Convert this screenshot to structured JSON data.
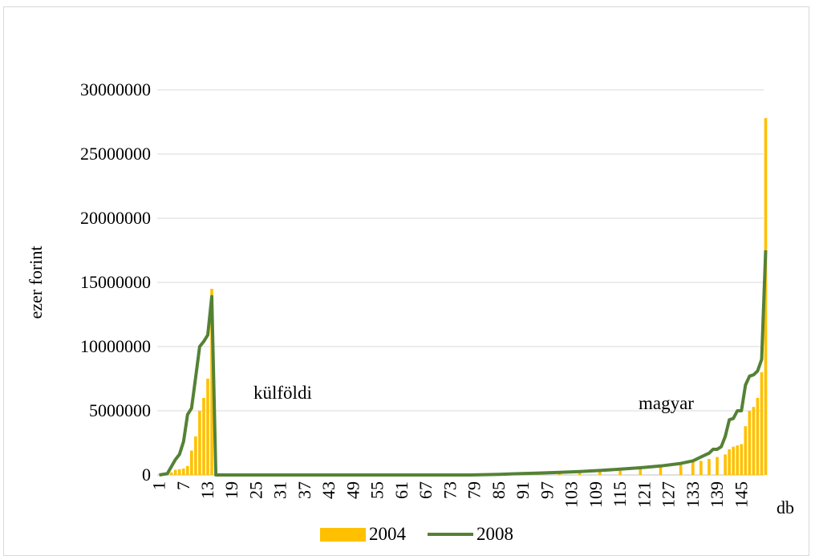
{
  "chart_data": {
    "type": "bar",
    "title": "",
    "xlabel": "db",
    "ylabel": "ezer forint",
    "ylim": [
      0,
      30000000
    ],
    "yticks": [
      "0",
      "5000000",
      "10000000",
      "15000000",
      "20000000",
      "25000000",
      "30000000"
    ],
    "xticks": [
      "1",
      "7",
      "13",
      "19",
      "25",
      "31",
      "37",
      "43",
      "49",
      "55",
      "61",
      "67",
      "73",
      "79",
      "85",
      "91",
      "97",
      "103",
      "109",
      "115",
      "121",
      "127",
      "133",
      "139",
      "145"
    ],
    "x_count": 150,
    "grid": true,
    "legend_position": "bottom",
    "annotations": [
      {
        "text": "külföldi",
        "x": 33
      },
      {
        "text": "magyar",
        "x": 133
      }
    ],
    "series": [
      {
        "name": "2004",
        "type": "bar",
        "color": "#ffc000",
        "points": [
          [
            1,
            0
          ],
          [
            2,
            0
          ],
          [
            3,
            50000
          ],
          [
            4,
            200000
          ],
          [
            5,
            400000
          ],
          [
            6,
            450000
          ],
          [
            7,
            500000
          ],
          [
            8,
            700000
          ],
          [
            9,
            1900000
          ],
          [
            10,
            3000000
          ],
          [
            11,
            5000000
          ],
          [
            12,
            6000000
          ],
          [
            13,
            7500000
          ],
          [
            14,
            14500000
          ],
          [
            15,
            0
          ],
          [
            79,
            40000
          ],
          [
            85,
            60000
          ],
          [
            90,
            90000
          ],
          [
            95,
            130000
          ],
          [
            100,
            170000
          ],
          [
            105,
            230000
          ],
          [
            110,
            300000
          ],
          [
            115,
            400000
          ],
          [
            120,
            500000
          ],
          [
            125,
            650000
          ],
          [
            130,
            850000
          ],
          [
            133,
            1000000
          ],
          [
            135,
            1100000
          ],
          [
            137,
            1250000
          ],
          [
            139,
            1400000
          ],
          [
            141,
            1600000
          ],
          [
            142,
            2000000
          ],
          [
            143,
            2200000
          ],
          [
            144,
            2300000
          ],
          [
            145,
            2400000
          ],
          [
            146,
            3800000
          ],
          [
            147,
            5000000
          ],
          [
            148,
            5300000
          ],
          [
            149,
            6000000
          ],
          [
            150,
            8000000
          ],
          [
            151,
            27800000
          ]
        ]
      },
      {
        "name": "2008",
        "type": "line",
        "color": "#548235",
        "points": [
          [
            1,
            0
          ],
          [
            3,
            100000
          ],
          [
            5,
            1200000
          ],
          [
            6,
            1600000
          ],
          [
            7,
            2600000
          ],
          [
            8,
            4700000
          ],
          [
            9,
            5200000
          ],
          [
            10,
            7600000
          ],
          [
            11,
            10000000
          ],
          [
            12,
            10400000
          ],
          [
            13,
            10900000
          ],
          [
            14,
            13900000
          ],
          [
            15,
            0
          ],
          [
            78,
            0
          ],
          [
            85,
            50000
          ],
          [
            90,
            100000
          ],
          [
            95,
            150000
          ],
          [
            100,
            200000
          ],
          [
            105,
            260000
          ],
          [
            110,
            350000
          ],
          [
            115,
            450000
          ],
          [
            120,
            560000
          ],
          [
            125,
            700000
          ],
          [
            130,
            900000
          ],
          [
            133,
            1100000
          ],
          [
            135,
            1400000
          ],
          [
            137,
            1700000
          ],
          [
            138,
            2000000
          ],
          [
            139,
            2000000
          ],
          [
            140,
            2200000
          ],
          [
            141,
            3000000
          ],
          [
            142,
            4300000
          ],
          [
            143,
            4400000
          ],
          [
            144,
            5000000
          ],
          [
            145,
            5000000
          ],
          [
            146,
            7000000
          ],
          [
            147,
            7700000
          ],
          [
            148,
            7800000
          ],
          [
            149,
            8100000
          ],
          [
            150,
            9000000
          ],
          [
            151,
            17500000
          ]
        ]
      }
    ]
  }
}
